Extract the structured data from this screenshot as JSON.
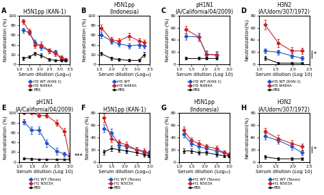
{
  "chart_data": [
    {
      "type": "line",
      "panel_label": "A",
      "title": "H5N1pp (KAN-1)",
      "x_label": "Serum dilution (Log₁₀)",
      "y_label": "Neutralization (%)",
      "xlim": [
        1.0,
        3.5
      ],
      "ylim": [
        0,
        100
      ],
      "xticks": [
        {
          "value": 1,
          "label": "1.0"
        },
        1.5,
        {
          "value": 2,
          "label": "2.0"
        },
        2.5,
        {
          "value": 3,
          "label": "3.0"
        },
        3.5
      ],
      "yticks": [
        0,
        20,
        40,
        60,
        80,
        100
      ],
      "legend": "lower center",
      "x": [
        1.18,
        1.48,
        1.78,
        2.08,
        2.48,
        2.78,
        3.08,
        3.28
      ],
      "series": [
        {
          "name": "H5 WT (KAN-1)",
          "color": "#2255cc",
          "marker": "diamond",
          "values": [
            70,
            65,
            45,
            35,
            28,
            25,
            10,
            9
          ],
          "errors": [
            5,
            5,
            5,
            5,
            5,
            5,
            3,
            3
          ]
        },
        {
          "name": "H5 N484A",
          "color": "#cc2222",
          "marker": "diamond",
          "values": [
            88,
            68,
            40,
            40,
            28,
            22,
            14,
            10
          ],
          "errors": [
            5,
            5,
            6,
            6,
            5,
            5,
            4,
            3
          ]
        },
        {
          "name": "PBS",
          "color": "#111111",
          "marker": "star",
          "values": [
            12,
            15,
            22,
            18,
            10,
            8,
            8,
            8
          ],
          "errors": [
            3,
            3,
            4,
            4,
            3,
            2,
            2,
            2
          ]
        }
      ]
    },
    {
      "type": "line",
      "panel_label": "B",
      "title": "H5N1pp\n(Indonesia)",
      "x_label": "Serum dilution (Log₁₀)",
      "y_label": "Neutralization (%)",
      "xlim": [
        1.5,
        3.5
      ],
      "ylim": [
        0,
        100
      ],
      "xticks": [
        1.5,
        {
          "value": 2,
          "label": "2.0"
        },
        2.5,
        {
          "value": 3,
          "label": "3.0"
        },
        3.5
      ],
      "yticks": [
        0,
        20,
        40,
        60,
        80,
        100
      ],
      "legend": "lower center",
      "x": [
        1.58,
        1.98,
        2.28,
        2.68,
        3.08,
        3.28
      ],
      "series": [
        {
          "name": "H5 WT",
          "color": "#2255cc",
          "marker": "diamond",
          "values": [
            60,
            48,
            42,
            38,
            40,
            38
          ],
          "errors": [
            6,
            6,
            6,
            5,
            6,
            5
          ]
        },
        {
          "name": "H5 N484A",
          "color": "#cc2222",
          "marker": "diamond",
          "values": [
            75,
            50,
            48,
            58,
            48,
            45
          ],
          "errors": [
            6,
            6,
            6,
            7,
            6,
            5
          ]
        },
        {
          "name": "PBS",
          "color": "#111111",
          "marker": "star",
          "values": [
            22,
            12,
            10,
            8,
            8,
            20
          ],
          "errors": [
            4,
            4,
            3,
            3,
            3,
            5
          ]
        }
      ]
    },
    {
      "type": "line",
      "panel_label": "C",
      "title": "pH1N1\n(A/California/04/2009)",
      "x_label": "Serum dilution (Log 10)",
      "y_label": "Neutralization (%)",
      "xlim": [
        1.0,
        3.0
      ],
      "ylim": [
        0,
        80
      ],
      "xticks": [
        {
          "value": 1,
          "label": "1.0"
        },
        1.5,
        {
          "value": 2,
          "label": "2.0"
        },
        2.5,
        {
          "value": 3,
          "label": "3.0"
        }
      ],
      "yticks": [
        0,
        20,
        40,
        60,
        80
      ],
      "legend": "lower center",
      "x": [
        1.28,
        1.78,
        2.08,
        2.48
      ],
      "series": [
        {
          "name": "H5 WT (KAN-1)",
          "color": "#2255cc",
          "marker": "diamond",
          "values": [
            46,
            45,
            17,
            15
          ],
          "errors": [
            5,
            5,
            6,
            5
          ]
        },
        {
          "name": "H5 N484A",
          "color": "#cc2222",
          "marker": "diamond",
          "values": [
            57,
            45,
            16,
            16
          ],
          "errors": [
            6,
            7,
            5,
            5
          ]
        },
        {
          "name": "PBS",
          "color": "#111111",
          "marker": "star",
          "values": [
            10,
            10,
            10,
            10
          ],
          "errors": [
            2,
            2,
            2,
            2
          ]
        }
      ]
    },
    {
      "type": "line",
      "panel_label": "D",
      "title": "H3N2\n(A/Udorn/307/1972)",
      "x_label": "Serum dilution (Log 10)",
      "y_label": "Neutralization(%)",
      "xlim": [
        1.0,
        2.5
      ],
      "ylim": [
        0,
        80
      ],
      "xticks": [
        {
          "value": 1,
          "label": "1.0"
        },
        1.5,
        {
          "value": 2,
          "label": "2.0"
        },
        2.5
      ],
      "yticks": [
        0,
        20,
        40,
        60,
        80
      ],
      "legend": "lower center",
      "significance": "*",
      "x": [
        1.18,
        1.58,
        1.98,
        2.28
      ],
      "series": [
        {
          "name": "H5 WT (KAN-1)",
          "color": "#2255cc",
          "marker": "diamond",
          "values": [
            22,
            20,
            14,
            10
          ],
          "errors": [
            4,
            4,
            4,
            3
          ]
        },
        {
          "name": "H5 N484A",
          "color": "#cc2222",
          "marker": "diamond",
          "values": [
            65,
            35,
            22,
            22
          ],
          "errors": [
            8,
            7,
            6,
            5
          ]
        },
        {
          "name": "PBS",
          "color": "#111111",
          "marker": "star",
          "values": [
            10,
            2,
            2,
            2
          ],
          "errors": [
            3,
            1,
            1,
            1
          ]
        }
      ]
    },
    {
      "type": "line",
      "panel_label": "E",
      "title": "pH1N1\n(A/California/04/2009)",
      "x_label": "Serum dilution (Log 10)",
      "y_label": "Neutralization (%)",
      "xlim": [
        1.0,
        3.0
      ],
      "ylim": [
        0,
        100
      ],
      "xticks": [
        {
          "value": 1,
          "label": "1.0"
        },
        1.5,
        {
          "value": 2,
          "label": "2.0"
        },
        2.5,
        {
          "value": 3,
          "label": "3.0"
        }
      ],
      "yticks": [
        0,
        20,
        40,
        60,
        80,
        100
      ],
      "legend": "lower center",
      "significance": "***",
      "x": [
        1.18,
        1.48,
        1.78,
        2.08,
        2.48,
        2.78,
        2.98
      ],
      "series": [
        {
          "name": "H1 WT (Texas)",
          "color": "#2255cc",
          "marker": "diamond",
          "values": [
            82,
            65,
            65,
            38,
            22,
            16,
            12
          ],
          "errors": [
            6,
            8,
            8,
            8,
            7,
            5,
            4
          ]
        },
        {
          "name": "H1 N503A",
          "color": "#cc2222",
          "marker": "diamond",
          "values": [
            100,
            100,
            95,
            95,
            80,
            62,
            12
          ],
          "errors": [
            0,
            0,
            3,
            4,
            6,
            8,
            5
          ]
        },
        {
          "name": "PBS",
          "color": "#111111",
          "marker": "star",
          "values": [
            7,
            6,
            5,
            5,
            5,
            5,
            5
          ],
          "errors": [
            2,
            2,
            2,
            2,
            2,
            2,
            2
          ]
        }
      ]
    },
    {
      "type": "line",
      "panel_label": "F",
      "title": "H5N1pp (KAN-1)",
      "x_label": "Serum dilution (Log₁₀)",
      "y_label": "Neutralization (%)",
      "xlim": [
        1.0,
        3.0
      ],
      "ylim": [
        0,
        80
      ],
      "xticks": [
        {
          "value": 1,
          "label": "1.0"
        },
        1.5,
        {
          "value": 2,
          "label": "2.0"
        },
        2.5,
        {
          "value": 3,
          "label": "3.0"
        }
      ],
      "yticks": [
        0,
        20,
        40,
        60,
        80
      ],
      "legend": "lower center",
      "x": [
        1.18,
        1.48,
        1.78,
        2.08,
        2.48,
        2.78,
        2.98
      ],
      "series": [
        {
          "name": "H1 WT (Texas)",
          "color": "#2255cc",
          "marker": "diamond",
          "values": [
            55,
            48,
            28,
            25,
            20,
            15,
            15
          ],
          "errors": [
            6,
            6,
            5,
            5,
            4,
            4,
            4
          ]
        },
        {
          "name": "H1 N503A",
          "color": "#cc2222",
          "marker": "diamond",
          "values": [
            72,
            38,
            32,
            28,
            20,
            18,
            12
          ],
          "errors": [
            7,
            6,
            5,
            5,
            4,
            4,
            4
          ]
        },
        {
          "name": "PBS",
          "color": "#111111",
          "marker": "star",
          "values": [
            16,
            22,
            20,
            18,
            15,
            12,
            10
          ],
          "errors": [
            4,
            4,
            4,
            4,
            4,
            3,
            3
          ]
        }
      ]
    },
    {
      "type": "line",
      "panel_label": "G",
      "title": "H5N1pp\n(Indonesia)",
      "x_label": "Serum dilution (Log₁₀)",
      "y_label": "Neutralization (%)",
      "xlim": [
        1.0,
        3.0
      ],
      "ylim": [
        0,
        80
      ],
      "xticks": [
        {
          "value": 1,
          "label": "1.0"
        },
        1.5,
        {
          "value": 2,
          "label": "2.0"
        },
        2.5,
        {
          "value": 3,
          "label": "3.0"
        }
      ],
      "yticks": [
        0,
        20,
        40,
        60,
        80
      ],
      "legend": "lower center",
      "x": [
        1.18,
        1.48,
        1.78,
        2.08,
        2.48,
        2.78,
        2.98
      ],
      "series": [
        {
          "name": "H1 WT (Texas)",
          "color": "#2255cc",
          "marker": "diamond",
          "values": [
            45,
            30,
            25,
            22,
            18,
            15,
            12
          ],
          "errors": [
            5,
            5,
            5,
            4,
            4,
            4,
            3
          ]
        },
        {
          "name": "H1 N503A",
          "color": "#cc2222",
          "marker": "diamond",
          "values": [
            52,
            35,
            30,
            25,
            22,
            15,
            12
          ],
          "errors": [
            6,
            5,
            5,
            4,
            4,
            4,
            3
          ]
        },
        {
          "name": "PBS",
          "color": "#111111",
          "marker": "star",
          "values": [
            18,
            18,
            15,
            15,
            12,
            10,
            10
          ],
          "errors": [
            4,
            4,
            3,
            3,
            3,
            3,
            3
          ]
        }
      ]
    },
    {
      "type": "line",
      "panel_label": "H",
      "title": "H3N2\n(A/Udorn/307/1972)",
      "x_label": "Serum dilution (Log 10)",
      "y_label": "Neutralization(%)",
      "xlim": [
        1.0,
        2.5
      ],
      "ylim": [
        0,
        80
      ],
      "xticks": [
        {
          "value": 1,
          "label": "1.0"
        },
        1.5,
        {
          "value": 2,
          "label": "2.0"
        },
        2.5
      ],
      "yticks": [
        0,
        20,
        40,
        60,
        80
      ],
      "legend": "lower center",
      "significance": "*",
      "x": [
        1.18,
        1.58,
        1.98,
        2.28
      ],
      "series": [
        {
          "name": "H1 WT (Texas)",
          "color": "#2255cc",
          "marker": "diamond",
          "values": [
            42,
            35,
            25,
            15
          ],
          "errors": [
            5,
            5,
            5,
            4
          ]
        },
        {
          "name": "H1 N503A",
          "color": "#cc2222",
          "marker": "diamond",
          "values": [
            50,
            38,
            30,
            25
          ],
          "errors": [
            6,
            6,
            5,
            5
          ]
        },
        {
          "name": "PBS",
          "color": "#111111",
          "marker": "star",
          "values": [
            8,
            5,
            5,
            5
          ],
          "errors": [
            3,
            2,
            2,
            2
          ]
        }
      ]
    }
  ]
}
